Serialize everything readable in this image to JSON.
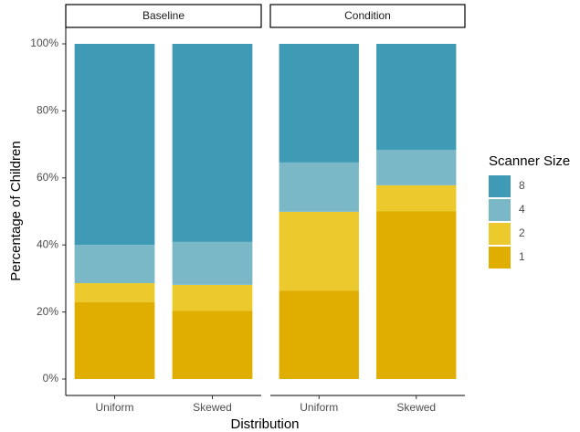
{
  "chart_data": {
    "type": "bar",
    "stacked": true,
    "x_label": "Distribution",
    "y_label": "Percentage of Children",
    "legend_title": "Scanner Size",
    "categories": [
      "Uniform",
      "Skewed"
    ],
    "ylim": [
      0,
      100
    ],
    "yticks": [
      {
        "value": 0,
        "label": "0%"
      },
      {
        "value": 20,
        "label": "20%"
      },
      {
        "value": 40,
        "label": "40%"
      },
      {
        "value": 60,
        "label": "60%"
      },
      {
        "value": 80,
        "label": "80%"
      },
      {
        "value": 100,
        "label": "100%"
      }
    ],
    "facets": [
      {
        "title": "Baseline",
        "series": [
          {
            "name": "1",
            "color": "#e0ae00",
            "values": [
              22.9,
              20.4
            ]
          },
          {
            "name": "2",
            "color": "#ecc92d",
            "values": [
              5.7,
              7.7
            ]
          },
          {
            "name": "4",
            "color": "#7ab8c8",
            "values": [
              11.4,
              12.8
            ]
          },
          {
            "name": "8",
            "color": "#3e9ab5",
            "values": [
              60.0,
              59.1
            ]
          }
        ]
      },
      {
        "title": "Condition",
        "series": [
          {
            "name": "1",
            "color": "#e0ae00",
            "values": [
              26.4,
              50.0
            ]
          },
          {
            "name": "2",
            "color": "#ecc92d",
            "values": [
              23.5,
              7.8
            ]
          },
          {
            "name": "4",
            "color": "#7ab8c8",
            "values": [
              14.7,
              10.6
            ]
          },
          {
            "name": "8",
            "color": "#3e9ab5",
            "values": [
              35.4,
              31.6
            ]
          }
        ]
      }
    ]
  }
}
